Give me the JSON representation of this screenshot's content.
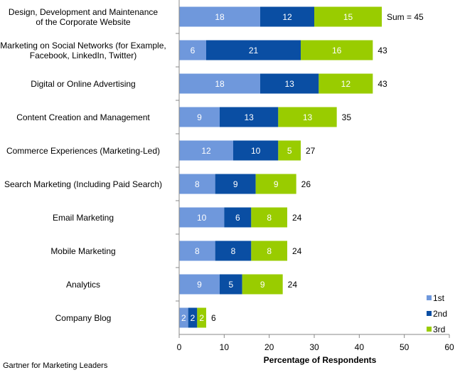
{
  "chart_data": {
    "type": "bar",
    "orientation": "horizontal",
    "stacked": true,
    "categories": [
      "Design, Development and Maintenance\nof the Corporate Website",
      "Marketing on Social Networks (for Example,\nFacebook, LinkedIn, Twitter)",
      "Digital or Online Advertising",
      "Content Creation and Management",
      "Commerce Experiences (Marketing-Led)",
      "Search Marketing (Including Paid Search)",
      "Email Marketing",
      "Mobile Marketing",
      "Analytics",
      "Company Blog"
    ],
    "series": [
      {
        "name": "1st",
        "color": "#6f98dc",
        "values": [
          18,
          6,
          18,
          9,
          12,
          8,
          10,
          8,
          9,
          2
        ]
      },
      {
        "name": "2nd",
        "color": "#0a4ea3",
        "values": [
          12,
          21,
          13,
          13,
          10,
          9,
          6,
          8,
          5,
          2
        ]
      },
      {
        "name": "3rd",
        "color": "#99cc00",
        "values": [
          15,
          16,
          12,
          13,
          5,
          9,
          8,
          8,
          9,
          2
        ]
      }
    ],
    "totals": [
      "Sum = 45",
      "43",
      "43",
      "35",
      "27",
      "26",
      "24",
      "24",
      "24",
      "6"
    ],
    "xlabel": "Percentage of Respondents",
    "ylabel": "",
    "xlim": [
      0,
      60
    ],
    "xticks": [
      "0",
      "10",
      "20",
      "30",
      "40",
      "50",
      "60"
    ],
    "grid": false,
    "legend": "bottom-right"
  },
  "source": "Gartner for Marketing Leaders"
}
